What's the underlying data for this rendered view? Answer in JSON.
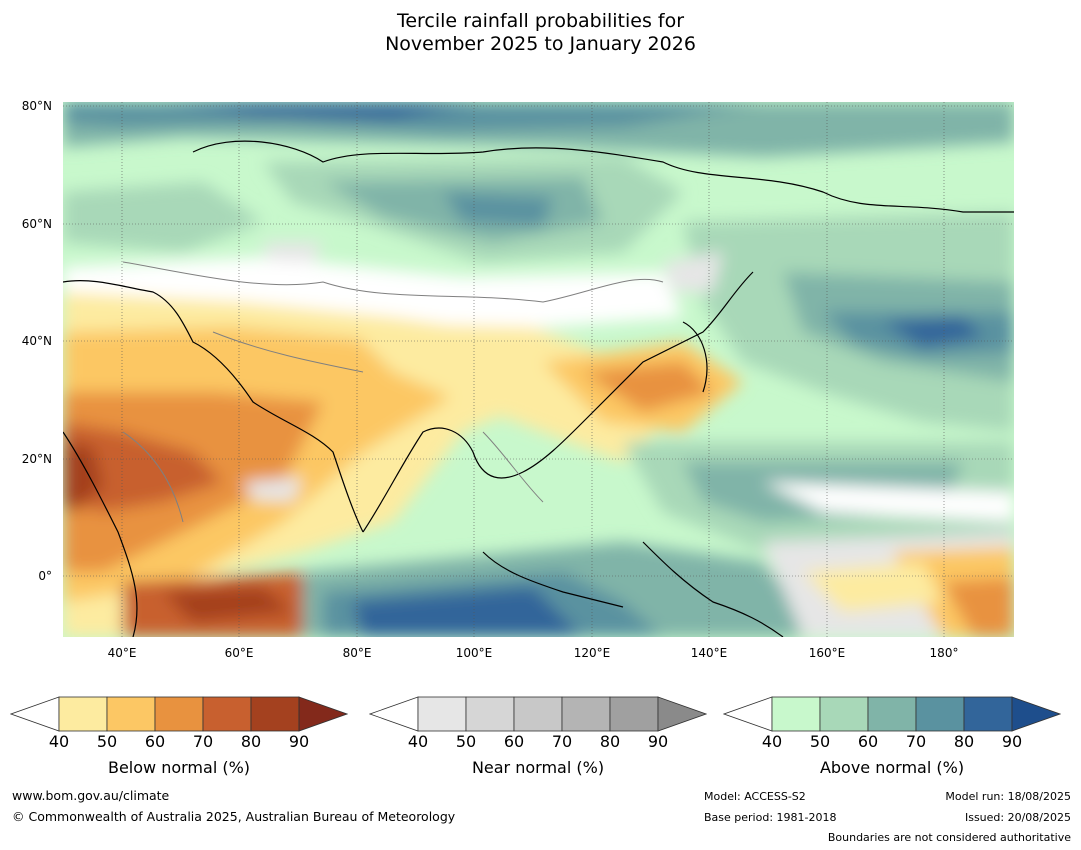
{
  "title": {
    "line1": "Tercile rainfall probabilities for",
    "line2": "November 2025 to January 2026"
  },
  "map": {
    "lat_labels": [
      "80°N",
      "60°N",
      "40°N",
      "20°N",
      "0°"
    ],
    "lon_labels": [
      "40°E",
      "60°E",
      "80°E",
      "100°E",
      "120°E",
      "140°E",
      "160°E",
      "180°"
    ],
    "colors": {
      "below": [
        "#fdeba0",
        "#fcc764",
        "#e8923f",
        "#c8602f",
        "#a4411f",
        "#83291b"
      ],
      "near": [
        "#e6e6e6",
        "#d6d6d6",
        "#c8c8c8",
        "#b4b4b4",
        "#a0a0a0",
        "#8a8a8a"
      ],
      "above": [
        "#c8f8cc",
        "#a8d8b8",
        "#80b4a8",
        "#5a92a0",
        "#32659a",
        "#1e4e8c"
      ]
    }
  },
  "colorbars": [
    {
      "name": "below",
      "title": "Below normal (%)",
      "ticks": [
        "40",
        "50",
        "60",
        "70",
        "80",
        "90"
      ],
      "colors": [
        "#fdeba0",
        "#fcc764",
        "#e8923f",
        "#c8602f",
        "#a4411f",
        "#83291b"
      ]
    },
    {
      "name": "near",
      "title": "Near normal (%)",
      "ticks": [
        "40",
        "50",
        "60",
        "70",
        "80",
        "90"
      ],
      "colors": [
        "#e6e6e6",
        "#d6d6d6",
        "#c8c8c8",
        "#b4b4b4",
        "#a0a0a0",
        "#8a8a8a"
      ]
    },
    {
      "name": "above",
      "title": "Above normal (%)",
      "ticks": [
        "40",
        "50",
        "60",
        "70",
        "80",
        "90"
      ],
      "colors": [
        "#c8f8cc",
        "#a8d8b8",
        "#80b4a8",
        "#5a92a0",
        "#32659a",
        "#1e4e8c"
      ]
    }
  ],
  "footer": {
    "website": "www.bom.gov.au/climate",
    "copyright": "© Commonwealth of Australia 2025, Australian Bureau of Meteorology",
    "model": "Model: ACCESS-S2",
    "base_period": "Base period: 1981-2018",
    "model_run": "Model run: 18/08/2025",
    "issued": "Issued: 20/08/2025",
    "boundaries": "Boundaries are not considered authoritative"
  }
}
